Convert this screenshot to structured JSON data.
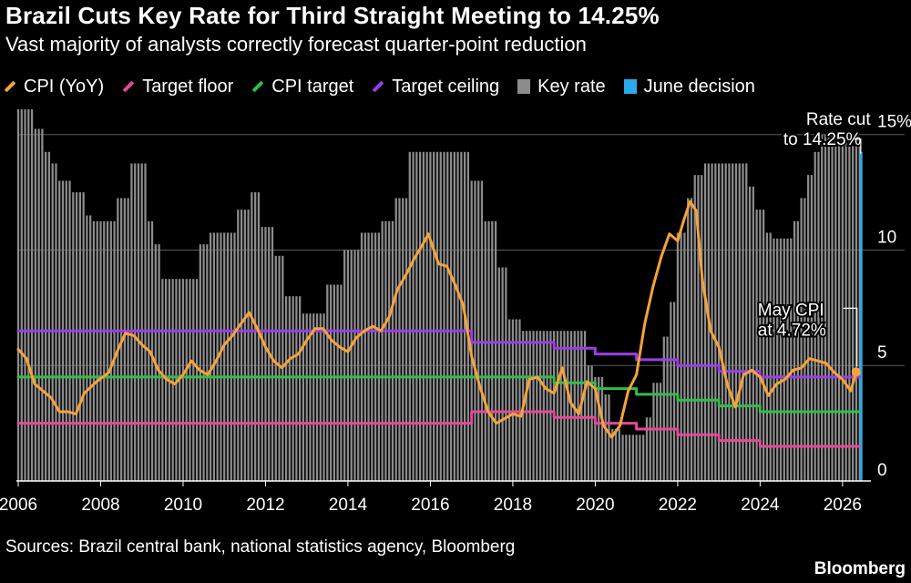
{
  "header": {
    "title": "Brazil Cuts Key Rate for Third Straight Meeting to 14.25%",
    "subtitle": "Vast majority of analysts correctly forecast quarter-point reduction"
  },
  "legend": [
    {
      "label": "CPI (YoY)",
      "color": "#f5a33a",
      "kind": "line",
      "icon": "line-swatch-icon"
    },
    {
      "label": "Target floor",
      "color": "#e8479a",
      "kind": "line",
      "icon": "line-swatch-icon"
    },
    {
      "label": "CPI target",
      "color": "#2fbf4a",
      "kind": "line",
      "icon": "line-swatch-icon"
    },
    {
      "label": "Target ceiling",
      "color": "#9b3de8",
      "kind": "line",
      "icon": "line-swatch-icon"
    },
    {
      "label": "Key rate",
      "color": "#8c8c8c",
      "kind": "box",
      "icon": "box-swatch-icon"
    },
    {
      "label": "June decision",
      "color": "#2aa9e8",
      "kind": "box",
      "icon": "box-swatch-icon"
    }
  ],
  "footer": {
    "source": "Sources: Brazil central bank, national statistics agency, Bloomberg",
    "brand": "Bloomberg"
  },
  "chart_data": {
    "type": "bar",
    "xlim": [
      2006,
      2026.6
    ],
    "ylim": [
      0,
      15.7
    ],
    "x_ticks": [
      "2006",
      "2008",
      "2010",
      "2012",
      "2014",
      "2016",
      "2018",
      "2020",
      "2022",
      "2024",
      "2026"
    ],
    "y_ticks": [
      "0",
      "5",
      "10",
      "15%"
    ],
    "grid": true,
    "legend_position": "top",
    "annotations": [
      {
        "text_lines": [
          "Rate cut",
          "to 14.25%"
        ],
        "x": 2026.42,
        "y": 14.25
      },
      {
        "text_lines": [
          "May CPI",
          "at 4.72%"
        ],
        "x": 2026.33,
        "y": 4.72
      }
    ],
    "key_rate": {
      "name": "Key rate",
      "color": "#8c8c8c",
      "frequency": "monthly",
      "points": [
        [
          2006.0,
          17.25
        ],
        [
          2006.2,
          16.5
        ],
        [
          2006.4,
          15.25
        ],
        [
          2006.6,
          14.25
        ],
        [
          2006.8,
          13.75
        ],
        [
          2007.0,
          13.0
        ],
        [
          2007.3,
          12.5
        ],
        [
          2007.6,
          11.5
        ],
        [
          2007.8,
          11.25
        ],
        [
          2008.2,
          11.25
        ],
        [
          2008.4,
          12.25
        ],
        [
          2008.7,
          13.75
        ],
        [
          2008.95,
          13.75
        ],
        [
          2009.1,
          11.25
        ],
        [
          2009.3,
          10.25
        ],
        [
          2009.5,
          8.75
        ],
        [
          2010.2,
          8.75
        ],
        [
          2010.4,
          10.25
        ],
        [
          2010.6,
          10.75
        ],
        [
          2011.0,
          10.75
        ],
        [
          2011.3,
          11.75
        ],
        [
          2011.6,
          12.5
        ],
        [
          2011.9,
          11.0
        ],
        [
          2012.2,
          9.75
        ],
        [
          2012.5,
          8.0
        ],
        [
          2012.9,
          7.25
        ],
        [
          2013.3,
          7.25
        ],
        [
          2013.5,
          8.5
        ],
        [
          2013.9,
          10.0
        ],
        [
          2014.3,
          10.75
        ],
        [
          2014.8,
          11.25
        ],
        [
          2015.1,
          12.25
        ],
        [
          2015.5,
          14.25
        ],
        [
          2016.8,
          14.25
        ],
        [
          2017.0,
          13.0
        ],
        [
          2017.3,
          11.25
        ],
        [
          2017.6,
          9.25
        ],
        [
          2017.9,
          7.0
        ],
        [
          2018.2,
          6.5
        ],
        [
          2019.6,
          6.5
        ],
        [
          2019.8,
          5.0
        ],
        [
          2020.0,
          4.5
        ],
        [
          2020.2,
          3.75
        ],
        [
          2020.4,
          2.25
        ],
        [
          2020.6,
          2.0
        ],
        [
          2021.1,
          2.0
        ],
        [
          2021.2,
          2.75
        ],
        [
          2021.4,
          4.25
        ],
        [
          2021.6,
          6.25
        ],
        [
          2021.8,
          7.75
        ],
        [
          2022.0,
          10.75
        ],
        [
          2022.2,
          12.25
        ],
        [
          2022.4,
          13.25
        ],
        [
          2022.6,
          13.75
        ],
        [
          2023.5,
          13.75
        ],
        [
          2023.7,
          12.75
        ],
        [
          2023.9,
          11.75
        ],
        [
          2024.1,
          10.75
        ],
        [
          2024.3,
          10.5
        ],
        [
          2024.6,
          10.5
        ],
        [
          2024.8,
          11.25
        ],
        [
          2024.95,
          12.25
        ],
        [
          2025.1,
          13.25
        ],
        [
          2025.3,
          14.25
        ],
        [
          2025.5,
          15.0
        ],
        [
          2025.9,
          15.0
        ],
        [
          2026.1,
          14.75
        ],
        [
          2026.25,
          14.5
        ],
        [
          2026.42,
          14.25
        ]
      ]
    },
    "june_decision": {
      "name": "June decision",
      "x": 2026.45,
      "value": 14.25,
      "color": "#2aa9e8"
    },
    "series": [
      {
        "name": "Target ceiling",
        "color": "#9b3de8",
        "style": "step",
        "points": [
          [
            2006.0,
            6.5
          ],
          [
            2017.0,
            6.0
          ],
          [
            2019.0,
            5.75
          ],
          [
            2020.0,
            5.5
          ],
          [
            2021.0,
            5.25
          ],
          [
            2022.0,
            5.0
          ],
          [
            2023.0,
            4.75
          ],
          [
            2024.0,
            4.5
          ],
          [
            2026.42,
            4.5
          ]
        ]
      },
      {
        "name": "CPI target",
        "color": "#2fbf4a",
        "style": "step",
        "points": [
          [
            2006.0,
            4.5
          ],
          [
            2017.0,
            4.5
          ],
          [
            2019.0,
            4.25
          ],
          [
            2020.0,
            4.0
          ],
          [
            2021.0,
            3.75
          ],
          [
            2022.0,
            3.5
          ],
          [
            2023.0,
            3.25
          ],
          [
            2024.0,
            3.0
          ],
          [
            2026.42,
            3.0
          ]
        ]
      },
      {
        "name": "Target floor",
        "color": "#e8479a",
        "style": "step",
        "points": [
          [
            2006.0,
            2.5
          ],
          [
            2017.0,
            3.0
          ],
          [
            2019.0,
            2.75
          ],
          [
            2020.0,
            2.5
          ],
          [
            2021.0,
            2.25
          ],
          [
            2022.0,
            2.0
          ],
          [
            2023.0,
            1.75
          ],
          [
            2024.0,
            1.5
          ],
          [
            2026.42,
            1.5
          ]
        ]
      },
      {
        "name": "CPI (YoY)",
        "color": "#f5a33a",
        "style": "line",
        "points": [
          [
            2006.0,
            5.7
          ],
          [
            2006.2,
            5.3
          ],
          [
            2006.4,
            4.2
          ],
          [
            2006.6,
            3.9
          ],
          [
            2006.8,
            3.6
          ],
          [
            2007.0,
            3.0
          ],
          [
            2007.2,
            3.0
          ],
          [
            2007.4,
            2.9
          ],
          [
            2007.6,
            3.8
          ],
          [
            2007.9,
            4.3
          ],
          [
            2008.2,
            4.7
          ],
          [
            2008.4,
            5.6
          ],
          [
            2008.6,
            6.4
          ],
          [
            2008.8,
            6.3
          ],
          [
            2009.0,
            5.9
          ],
          [
            2009.2,
            5.6
          ],
          [
            2009.4,
            4.8
          ],
          [
            2009.6,
            4.4
          ],
          [
            2009.8,
            4.2
          ],
          [
            2010.0,
            4.6
          ],
          [
            2010.2,
            5.2
          ],
          [
            2010.4,
            4.8
          ],
          [
            2010.6,
            4.6
          ],
          [
            2010.8,
            5.2
          ],
          [
            2011.0,
            5.9
          ],
          [
            2011.2,
            6.3
          ],
          [
            2011.4,
            6.8
          ],
          [
            2011.6,
            7.3
          ],
          [
            2011.8,
            6.6
          ],
          [
            2012.0,
            5.8
          ],
          [
            2012.2,
            5.2
          ],
          [
            2012.4,
            4.9
          ],
          [
            2012.6,
            5.3
          ],
          [
            2012.8,
            5.5
          ],
          [
            2013.0,
            6.1
          ],
          [
            2013.2,
            6.6
          ],
          [
            2013.4,
            6.6
          ],
          [
            2013.6,
            6.1
          ],
          [
            2013.8,
            5.8
          ],
          [
            2014.0,
            5.6
          ],
          [
            2014.2,
            6.2
          ],
          [
            2014.4,
            6.5
          ],
          [
            2014.6,
            6.7
          ],
          [
            2014.8,
            6.5
          ],
          [
            2015.0,
            7.1
          ],
          [
            2015.2,
            8.3
          ],
          [
            2015.4,
            8.9
          ],
          [
            2015.6,
            9.6
          ],
          [
            2015.8,
            10.2
          ],
          [
            2015.95,
            10.7
          ],
          [
            2016.2,
            9.4
          ],
          [
            2016.4,
            9.3
          ],
          [
            2016.6,
            8.5
          ],
          [
            2016.8,
            7.6
          ],
          [
            2017.0,
            5.4
          ],
          [
            2017.2,
            4.1
          ],
          [
            2017.4,
            3.0
          ],
          [
            2017.6,
            2.5
          ],
          [
            2017.8,
            2.7
          ],
          [
            2018.0,
            2.9
          ],
          [
            2018.2,
            2.8
          ],
          [
            2018.4,
            4.4
          ],
          [
            2018.6,
            4.5
          ],
          [
            2018.8,
            4.0
          ],
          [
            2019.0,
            3.8
          ],
          [
            2019.2,
            4.9
          ],
          [
            2019.4,
            3.4
          ],
          [
            2019.6,
            2.9
          ],
          [
            2019.8,
            4.3
          ],
          [
            2020.0,
            4.0
          ],
          [
            2020.2,
            2.4
          ],
          [
            2020.4,
            1.9
          ],
          [
            2020.6,
            2.4
          ],
          [
            2020.8,
            3.9
          ],
          [
            2021.0,
            4.6
          ],
          [
            2021.2,
            6.8
          ],
          [
            2021.4,
            8.4
          ],
          [
            2021.6,
            9.7
          ],
          [
            2021.8,
            10.7
          ],
          [
            2022.0,
            10.4
          ],
          [
            2022.15,
            11.3
          ],
          [
            2022.3,
            12.1
          ],
          [
            2022.45,
            11.7
          ],
          [
            2022.6,
            8.7
          ],
          [
            2022.8,
            6.5
          ],
          [
            2023.0,
            5.8
          ],
          [
            2023.2,
            4.2
          ],
          [
            2023.4,
            3.2
          ],
          [
            2023.6,
            4.6
          ],
          [
            2023.8,
            4.8
          ],
          [
            2024.0,
            4.5
          ],
          [
            2024.2,
            3.7
          ],
          [
            2024.4,
            4.2
          ],
          [
            2024.6,
            4.4
          ],
          [
            2024.8,
            4.8
          ],
          [
            2025.0,
            4.9
          ],
          [
            2025.2,
            5.3
          ],
          [
            2025.4,
            5.2
          ],
          [
            2025.6,
            5.1
          ],
          [
            2025.8,
            4.7
          ],
          [
            2026.0,
            4.4
          ],
          [
            2026.2,
            3.9
          ],
          [
            2026.33,
            4.72
          ]
        ]
      }
    ]
  }
}
